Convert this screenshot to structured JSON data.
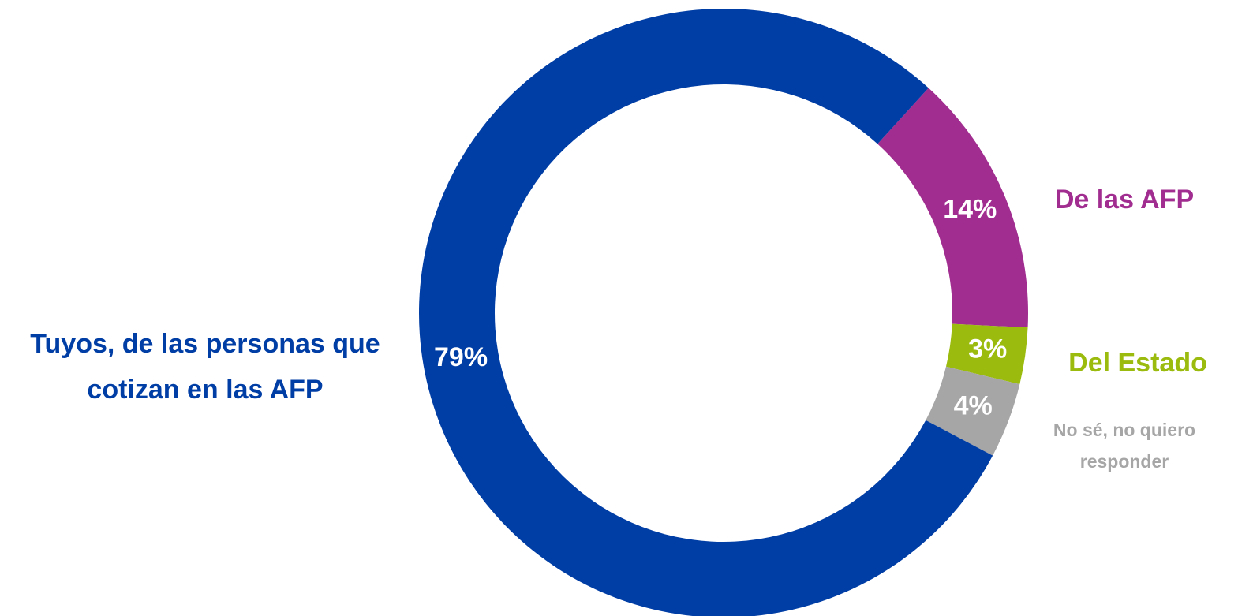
{
  "chart_data": {
    "type": "donut",
    "categories": [
      "De las AFP",
      "Del Estado",
      "No sé, no quiero responder",
      "Tuyos, de las personas que cotizan en las AFP"
    ],
    "values": [
      14,
      3,
      4,
      79
    ],
    "value_labels": [
      "14%",
      "3%",
      "4%",
      "79%"
    ],
    "colors": [
      "#A02D8F",
      "#9BBB0E",
      "#A6A6A6",
      "#003DA5"
    ]
  }
}
